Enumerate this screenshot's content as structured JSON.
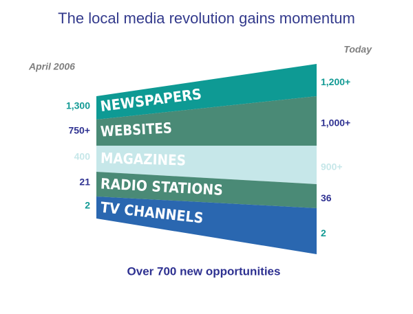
{
  "title": "The local media revolution gains momentum",
  "left_heading": "April 2006",
  "right_heading": "Today",
  "bands": [
    {
      "name": "NEWSPAPERS",
      "start": "1,300",
      "end": "1,200+"
    },
    {
      "name": "WEBSITES",
      "start": "750+",
      "end": "1,000+"
    },
    {
      "name": "MAGAZINES",
      "start": "400",
      "end": "900+"
    },
    {
      "name": "RADIO STATIONS",
      "start": "21",
      "end": "36"
    },
    {
      "name": "TV CHANNELS",
      "start": "2",
      "end": "2"
    }
  ],
  "footer": "Over 700 new opportunities"
}
